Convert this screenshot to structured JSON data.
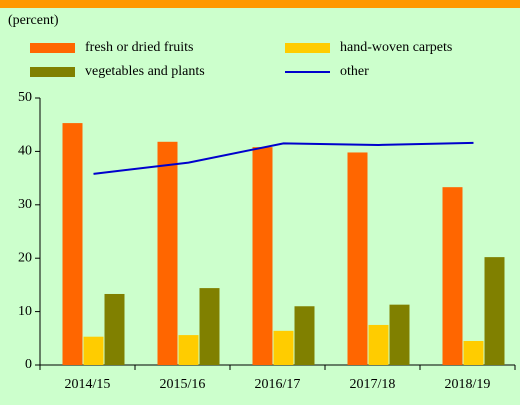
{
  "chart_data": {
    "type": "bar",
    "unit_label": "(percent)",
    "categories": [
      "2014/15",
      "2015/16",
      "2016/17",
      "2017/18",
      "2018/19"
    ],
    "series": [
      {
        "name": "fresh or dried fruits",
        "color": "#ff6600",
        "values": [
          45.3,
          41.8,
          40.8,
          39.8,
          33.3
        ]
      },
      {
        "name": "hand-woven carpets",
        "color": "#ffcc00",
        "values": [
          5.3,
          5.6,
          6.4,
          7.5,
          4.5
        ]
      },
      {
        "name": "vegetables and plants",
        "color": "#808000",
        "values": [
          13.3,
          14.4,
          11.0,
          11.3,
          20.2
        ]
      },
      {
        "name": "other",
        "color": "#0000cc",
        "type": "line",
        "values": [
          35.8,
          37.9,
          41.5,
          41.2,
          41.6
        ]
      }
    ],
    "ylim": [
      0,
      50
    ],
    "yticks": [
      0,
      10,
      20,
      30,
      40,
      50
    ]
  }
}
